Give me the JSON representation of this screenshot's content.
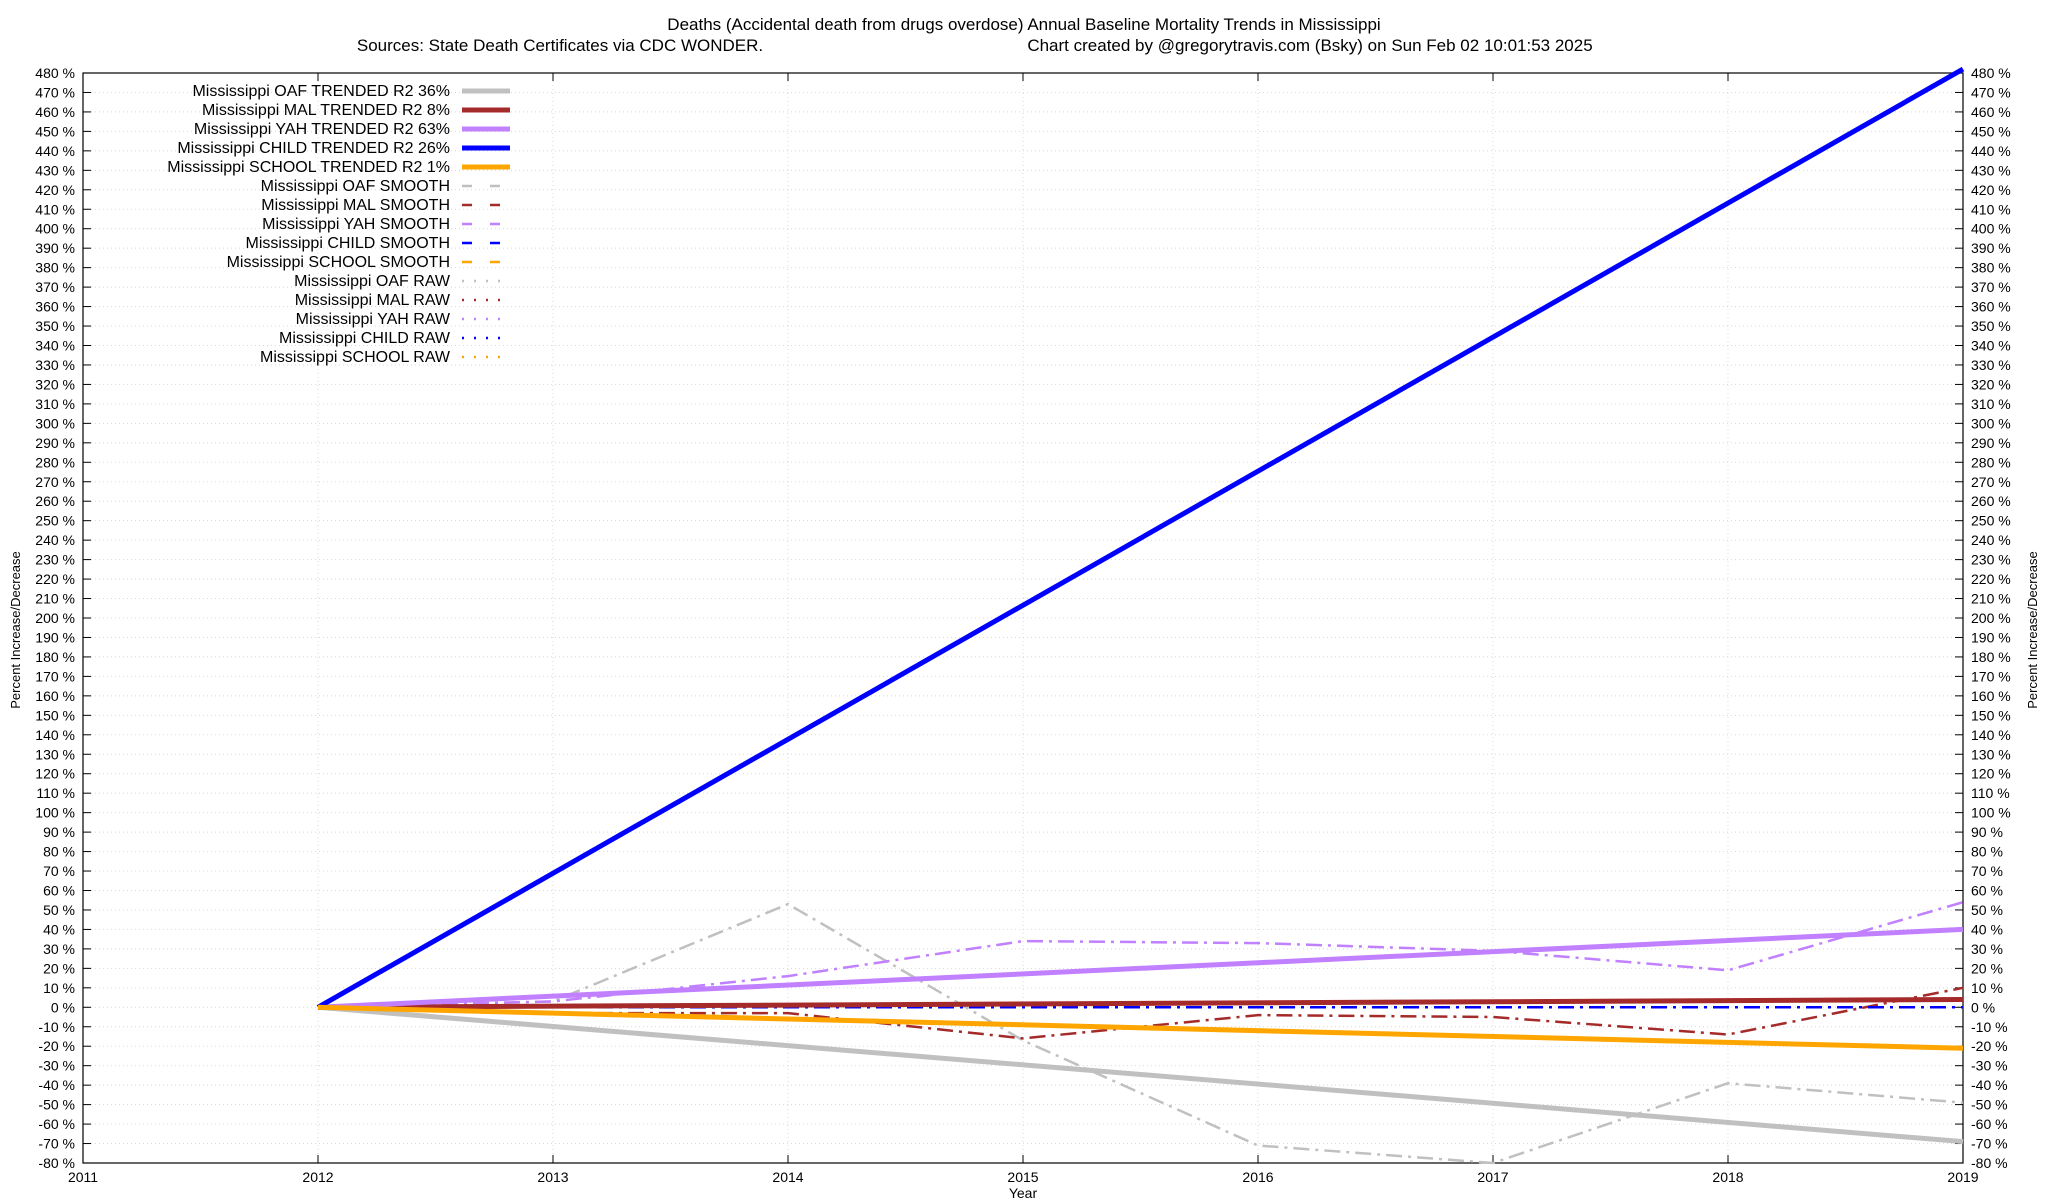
{
  "chart_data": {
    "type": "line",
    "title": "Deaths (Accidental death from drugs overdose)  Annual Baseline Mortality Trends in Mississippi",
    "subtitle_left": "Sources: State Death Certificates via CDC WONDER.",
    "subtitle_right": "Chart created by @gregorytravis.com (Bsky) on Sun Feb 02 10:01:53 2025",
    "xlabel": "Year",
    "ylabel": "Percent Increase/Decrease",
    "y2label": "Percent Increase/Decrease",
    "xlim": [
      2011,
      2019
    ],
    "ylim": [
      -80,
      480
    ],
    "xticks": [
      2011,
      2012,
      2013,
      2014,
      2015,
      2016,
      2017,
      2018,
      2019
    ],
    "ytick_step": 10,
    "ytick_suffix": " %",
    "grid": true,
    "legend_position": "top-left",
    "series": [
      {
        "name": "Mississippi OAF TRENDED R2",
        "r2": "36%",
        "style": "solid",
        "color": "#c0c0c0",
        "x": [
          2012,
          2019
        ],
        "y": [
          0,
          -69
        ]
      },
      {
        "name": "Mississippi MAL TRENDED R2",
        "r2": "8%",
        "style": "solid",
        "color": "#a52a2a",
        "x": [
          2012,
          2019
        ],
        "y": [
          0,
          4
        ]
      },
      {
        "name": "Mississippi YAH TRENDED R2",
        "r2": "63%",
        "style": "solid",
        "color": "#c080ff",
        "x": [
          2012,
          2019
        ],
        "y": [
          0,
          40
        ]
      },
      {
        "name": "Mississippi CHILD TRENDED R2",
        "r2": "26%",
        "style": "solid",
        "color": "#0000ff",
        "x": [
          2012,
          2019
        ],
        "y": [
          0,
          482
        ]
      },
      {
        "name": "Mississippi SCHOOL TRENDED R2",
        "r2": "1%",
        "style": "solid",
        "color": "#ffa500",
        "x": [
          2012,
          2019
        ],
        "y": [
          0,
          -21
        ]
      },
      {
        "name": "Mississippi OAF SMOOTH",
        "r2": "",
        "style": "dashdot",
        "color": "#c0c0c0",
        "x": [
          2012,
          2013,
          2014,
          2015,
          2016,
          2017,
          2018,
          2019
        ],
        "y": [
          0,
          3,
          53,
          -17,
          -71,
          -80,
          -39,
          -49
        ]
      },
      {
        "name": "Mississippi MAL SMOOTH",
        "r2": "",
        "style": "dashdot",
        "color": "#a52a2a",
        "x": [
          2012,
          2013,
          2014,
          2015,
          2016,
          2017,
          2018,
          2019
        ],
        "y": [
          0,
          -3,
          -3,
          -16,
          -4,
          -5,
          -14,
          10
        ]
      },
      {
        "name": "Mississippi YAH SMOOTH",
        "r2": "",
        "style": "dashdot",
        "color": "#c080ff",
        "x": [
          2012,
          2013,
          2014,
          2015,
          2016,
          2017,
          2018,
          2019
        ],
        "y": [
          0,
          3,
          16,
          34,
          33,
          29,
          19,
          54
        ]
      },
      {
        "name": "Mississippi CHILD SMOOTH",
        "r2": "",
        "style": "dashdot",
        "color": "#0000ff",
        "x": [
          2012,
          2013,
          2014,
          2015,
          2016,
          2017,
          2018,
          2019
        ],
        "y": [
          0,
          0,
          0,
          0,
          0,
          0,
          0,
          0
        ]
      },
      {
        "name": "Mississippi SCHOOL SMOOTH",
        "r2": "",
        "style": "dashdot",
        "color": "#ffa500",
        "x": [],
        "y": []
      },
      {
        "name": "Mississippi OAF RAW",
        "r2": "",
        "style": "dotted",
        "color": "#c0c0c0",
        "x": [],
        "y": []
      },
      {
        "name": "Mississippi MAL RAW",
        "r2": "",
        "style": "dotted",
        "color": "#a52a2a",
        "x": [],
        "y": []
      },
      {
        "name": "Mississippi YAH RAW",
        "r2": "",
        "style": "dotted",
        "color": "#c080ff",
        "x": [],
        "y": []
      },
      {
        "name": "Mississippi CHILD RAW",
        "r2": "",
        "style": "dotted",
        "color": "#0000ff",
        "x": [],
        "y": []
      },
      {
        "name": "Mississippi SCHOOL RAW",
        "r2": "",
        "style": "dotted",
        "color": "#ffa500",
        "x": [],
        "y": []
      }
    ]
  }
}
